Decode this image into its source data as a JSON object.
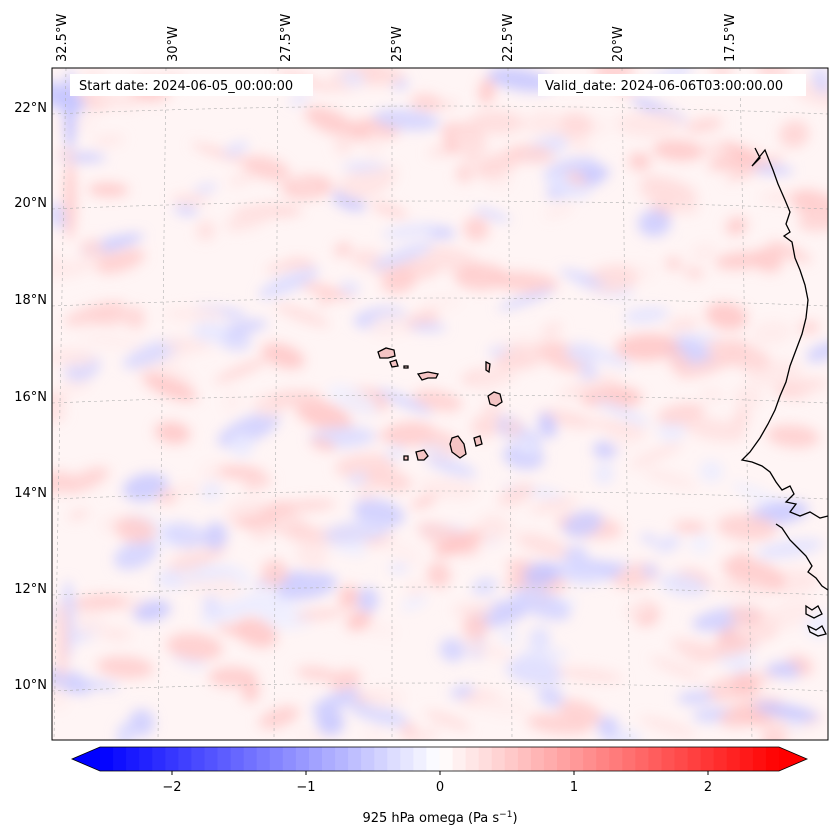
{
  "header": {
    "start_date": "Start date: 2024-06-05_00:00:00",
    "valid_date": "Valid_date: 2024-06-06T03:00:00.00"
  },
  "longitude_labels": [
    "32.5°W",
    "30°W",
    "27.5°W",
    "25°W",
    "22.5°W",
    "20°W",
    "17.5°W"
  ],
  "latitude_labels": [
    "22°N",
    "20°N",
    "18°N",
    "16°N",
    "14°N",
    "12°N",
    "10°N"
  ],
  "colorbar": {
    "label": "925 hPa omega (Pa s",
    "label_exponent": "−1",
    "label_close": ")",
    "ticks": [
      "−2",
      "−1",
      "0",
      "1",
      "2"
    ],
    "range": [
      -2.6,
      2.6
    ],
    "extend": "both",
    "colormap": "bwr",
    "color_low": "#0000ff",
    "color_mid": "#ffffff",
    "color_high": "#ff0000"
  },
  "map": {
    "field": "925 hPa omega",
    "extent_lon": [
      -32.7,
      -15.2
    ],
    "extent_lat": [
      8.9,
      22.7
    ],
    "coastline_color": "#000000",
    "gridline_color": "#b0b0b0"
  }
}
